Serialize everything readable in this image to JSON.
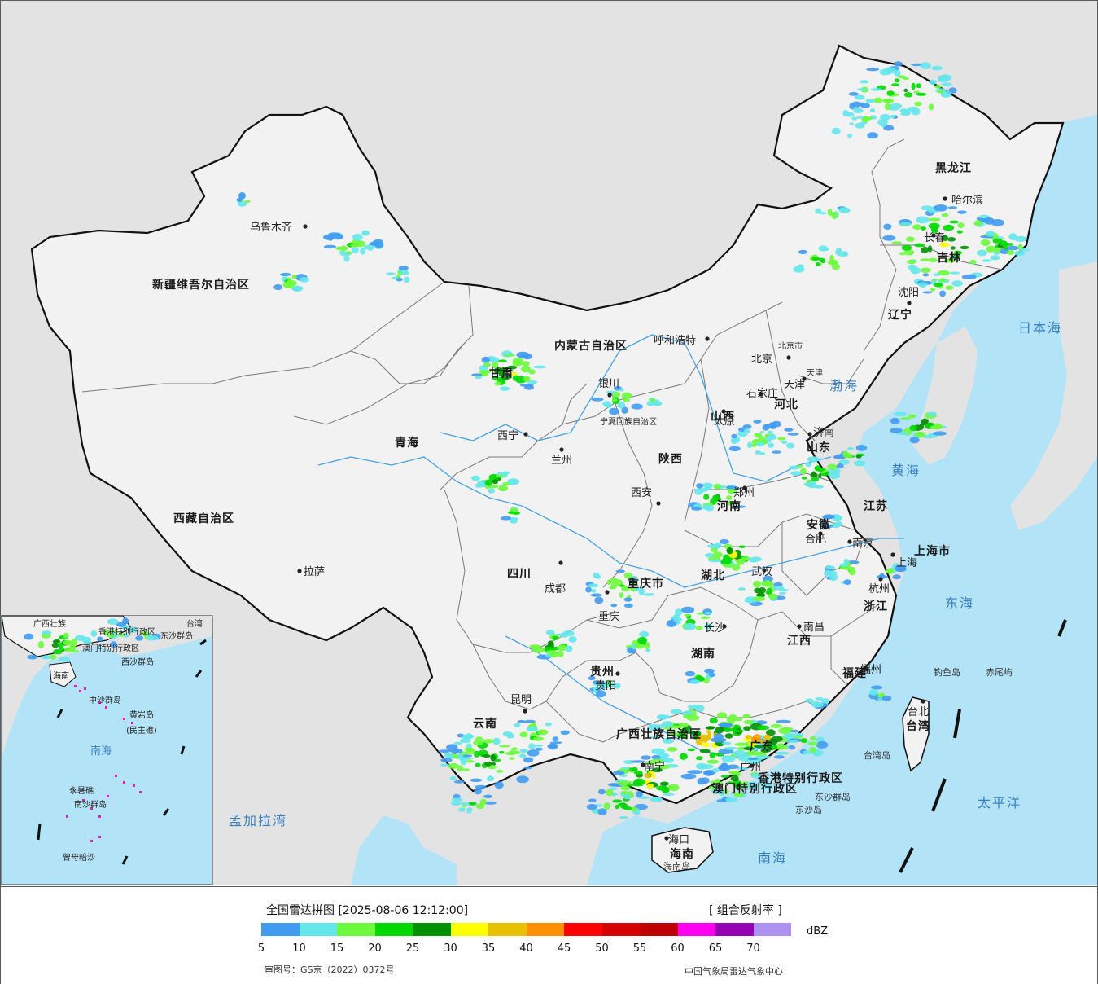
{
  "colors": {
    "sea": "#b3e3f6",
    "land_outside": "#e3e3e3",
    "china_land": "#f2f2f2",
    "border_national": "#111111",
    "border_province": "#7a7a7a",
    "river": "#45a3e0"
  },
  "map": {
    "provinces": [
      {
        "name": "新疆维吾尔自治区",
        "kind": "region"
      },
      {
        "name": "西藏自治区",
        "kind": "region"
      },
      {
        "name": "青海",
        "kind": "region"
      },
      {
        "name": "甘肃",
        "kind": "region"
      },
      {
        "name": "内蒙古自治区",
        "kind": "region"
      },
      {
        "name": "黑龙江",
        "kind": "region"
      },
      {
        "name": "吉林",
        "kind": "region"
      },
      {
        "name": "辽宁",
        "kind": "region"
      },
      {
        "name": "河北",
        "kind": "region"
      },
      {
        "name": "山西",
        "kind": "region"
      },
      {
        "name": "山东",
        "kind": "region"
      },
      {
        "name": "陕西",
        "kind": "region"
      },
      {
        "name": "河南",
        "kind": "region"
      },
      {
        "name": "四川",
        "kind": "region"
      },
      {
        "name": "重庆市",
        "kind": "region"
      },
      {
        "name": "湖北",
        "kind": "region"
      },
      {
        "name": "安徽",
        "kind": "region"
      },
      {
        "name": "江苏",
        "kind": "region"
      },
      {
        "name": "上海市",
        "kind": "region"
      },
      {
        "name": "浙江",
        "kind": "region"
      },
      {
        "name": "江西",
        "kind": "region"
      },
      {
        "name": "湖南",
        "kind": "region"
      },
      {
        "name": "贵州",
        "kind": "region"
      },
      {
        "name": "云南",
        "kind": "region"
      },
      {
        "name": "广西壮族自治区",
        "kind": "region"
      },
      {
        "name": "广东",
        "kind": "region"
      },
      {
        "name": "福建",
        "kind": "region"
      },
      {
        "name": "台湾",
        "kind": "region"
      },
      {
        "name": "海南",
        "kind": "region"
      },
      {
        "name": "香港特别行政区",
        "kind": "region"
      },
      {
        "name": "澳门特别行政区",
        "kind": "region"
      },
      {
        "name": "宁夏回族自治区",
        "kind": "region"
      },
      {
        "name": "天津",
        "kind": "region"
      },
      {
        "name": "北京市",
        "kind": "region"
      }
    ],
    "cities": [
      "乌鲁木齐",
      "拉萨",
      "西宁",
      "兰州",
      "银川",
      "呼和浩特",
      "北京",
      "天津",
      "石家庄",
      "太原",
      "济南",
      "郑州",
      "西安",
      "成都",
      "重庆",
      "武汉",
      "合肥",
      "南京",
      "上海",
      "杭州",
      "长沙",
      "南昌",
      "贵阳",
      "昆明",
      "南宁",
      "广州",
      "福州",
      "台北",
      "海口",
      "哈尔滨",
      "长春",
      "沈阳"
    ],
    "seas": [
      "渤海",
      "黄海",
      "东海",
      "南海",
      "日本海",
      "太平洋",
      "孟加拉湾"
    ],
    "islands": [
      "钓鱼岛",
      "赤尾屿",
      "台湾岛",
      "东沙群岛",
      "海南岛",
      "东沙岛"
    ],
    "inset": {
      "labels": [
        "台湾",
        "东沙群岛",
        "西沙群岛",
        "中沙群岛",
        "黄岩岛",
        "南海",
        "南沙群岛",
        "曾母暗沙",
        "永暑礁",
        "香港特别行政区",
        "澳门特别行政区",
        "海南",
        "广西壮族",
        "(民主礁)"
      ]
    }
  },
  "legend": {
    "title": "全国雷达拼图 [2025-08-06 12:12:00]",
    "product": "[ 组合反射率 ]",
    "unit": "dBZ",
    "approval": "审图号：GS京（2022）0372号",
    "source": "中国气象局雷达气象中心",
    "scale": [
      {
        "value": "5",
        "color": "#419bf0"
      },
      {
        "value": "10",
        "color": "#64e7eb"
      },
      {
        "value": "15",
        "color": "#6dfa3d"
      },
      {
        "value": "20",
        "color": "#00d800"
      },
      {
        "value": "25",
        "color": "#019001"
      },
      {
        "value": "30",
        "color": "#ffff00"
      },
      {
        "value": "35",
        "color": "#e7c000"
      },
      {
        "value": "40",
        "color": "#ff9000"
      },
      {
        "value": "45",
        "color": "#ff0000"
      },
      {
        "value": "50",
        "color": "#d60000"
      },
      {
        "value": "55",
        "color": "#c00000"
      },
      {
        "value": "60",
        "color": "#ff00f0"
      },
      {
        "value": "65",
        "color": "#9600b4"
      },
      {
        "value": "70",
        "color": "#ad90f0"
      }
    ]
  }
}
